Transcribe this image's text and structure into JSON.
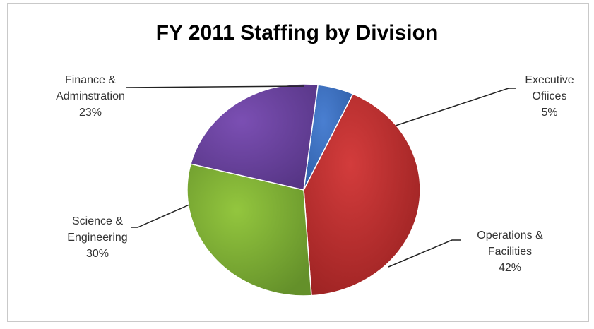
{
  "chart_data": {
    "type": "pie",
    "title": "FY 2011 Staffing by Division",
    "slices": [
      {
        "name": "Executive Ofiices",
        "label_lines": [
          "Executive",
          "Ofiices",
          "5%"
        ],
        "value": 5,
        "color": "#4a7fd1"
      },
      {
        "name": "Operations & Facilities",
        "label_lines": [
          "Operations &",
          "Facilities",
          "42%"
        ],
        "value": 42,
        "color": "#d33c3c"
      },
      {
        "name": "Science & Engineering",
        "label_lines": [
          "Science &",
          "Engineering",
          "30%"
        ],
        "value": 30,
        "color": "#93c63e"
      },
      {
        "name": "Finance & Adminstration",
        "label_lines": [
          "Finance &",
          "Adminstration",
          "23%"
        ],
        "value": 23,
        "color": "#7b4fb3"
      }
    ]
  }
}
